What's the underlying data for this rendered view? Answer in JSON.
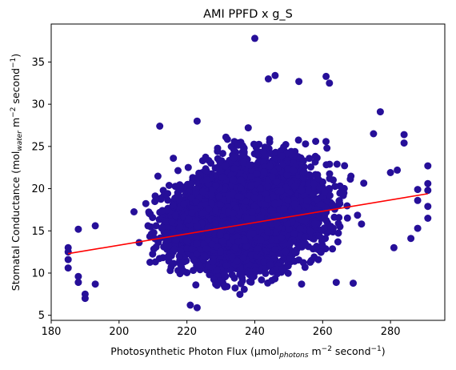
{
  "chart_data": {
    "type": "scatter",
    "title": "AMI PPFD x g_S",
    "xlabel": {
      "prefix": "Photosynthetic Photon Flux (µmol",
      "sub": "photons",
      "mid": " m",
      "sup": "−2",
      "suffix": " second",
      "sup2": "−1",
      "end": ")"
    },
    "ylabel": {
      "prefix": "Stomatal Conductance (mol",
      "sub": "water",
      "mid": " m",
      "sup": "−2",
      "suffix": " second",
      "sup2": "−1",
      "end": ")"
    },
    "xlim": [
      180,
      296
    ],
    "ylim": [
      4.4,
      39.5
    ],
    "xticks": [
      180,
      200,
      220,
      240,
      260,
      280
    ],
    "yticks": [
      5,
      10,
      15,
      20,
      25,
      30,
      35
    ],
    "grid": false,
    "point_color": "#260f99",
    "line_color": "#ff0000",
    "trend_line": {
      "x": [
        185,
        291
      ],
      "y": [
        12.3,
        19.4
      ]
    },
    "cloud": {
      "x_range": [
        185,
        291
      ],
      "y_mean_at_x_min": 12.3,
      "y_mean_at_x_max": 19.4,
      "note_points_visible": "dense cluster of several thousand points"
    },
    "outliers": [
      {
        "x": 240,
        "y": 37.8
      },
      {
        "x": 246,
        "y": 33.4
      },
      {
        "x": 244,
        "y": 33.0
      },
      {
        "x": 261,
        "y": 33.3
      },
      {
        "x": 262,
        "y": 32.5
      },
      {
        "x": 253,
        "y": 32.7
      },
      {
        "x": 185,
        "y": 13.0
      },
      {
        "x": 185,
        "y": 12.5
      },
      {
        "x": 185,
        "y": 11.6
      },
      {
        "x": 185,
        "y": 10.6
      },
      {
        "x": 188,
        "y": 15.2
      },
      {
        "x": 188,
        "y": 9.6
      },
      {
        "x": 188,
        "y": 8.9
      },
      {
        "x": 190,
        "y": 7.5
      },
      {
        "x": 190,
        "y": 7.0
      },
      {
        "x": 193,
        "y": 15.6
      },
      {
        "x": 193,
        "y": 8.7
      },
      {
        "x": 212,
        "y": 27.4
      },
      {
        "x": 216,
        "y": 23.6
      },
      {
        "x": 221,
        "y": 6.2
      },
      {
        "x": 223,
        "y": 5.9
      },
      {
        "x": 223,
        "y": 28.0
      },
      {
        "x": 291,
        "y": 22.7
      },
      {
        "x": 291,
        "y": 20.6
      },
      {
        "x": 291,
        "y": 19.8
      },
      {
        "x": 291,
        "y": 17.9
      },
      {
        "x": 291,
        "y": 16.5
      },
      {
        "x": 288,
        "y": 19.9
      },
      {
        "x": 288,
        "y": 18.6
      },
      {
        "x": 288,
        "y": 15.3
      },
      {
        "x": 286,
        "y": 14.1
      },
      {
        "x": 284,
        "y": 25.4
      },
      {
        "x": 282,
        "y": 22.2
      },
      {
        "x": 280,
        "y": 21.9
      },
      {
        "x": 281,
        "y": 13.0
      },
      {
        "x": 277,
        "y": 29.1
      },
      {
        "x": 275,
        "y": 26.5
      },
      {
        "x": 284,
        "y": 26.4
      },
      {
        "x": 269,
        "y": 8.8
      },
      {
        "x": 264,
        "y": 8.9
      }
    ]
  }
}
